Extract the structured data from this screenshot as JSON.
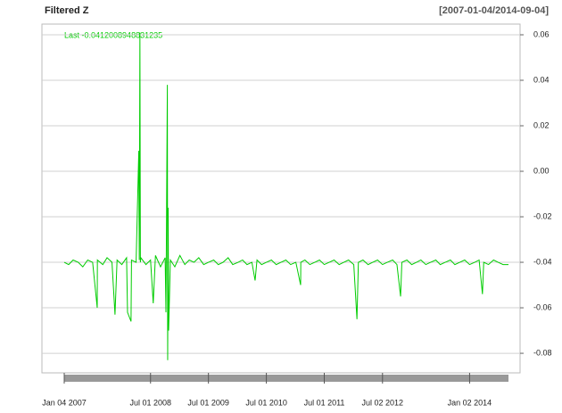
{
  "chart_data": {
    "type": "line",
    "title": "Filtered Z",
    "subtitle": "[2007-01-04/2014-09-04]",
    "annotation": "Last -0.0412008948831235",
    "color": "#00cc00",
    "grid": true,
    "xlim": [
      "2007-01-04",
      "2014-09-04"
    ],
    "ylim": [
      -0.0886,
      0.0647
    ],
    "yticks": [
      0.06,
      0.04,
      0.02,
      {
        "value": 0,
        "label": "0.00"
      },
      -0.02,
      -0.04,
      -0.06,
      -0.08
    ],
    "xticks": [
      {
        "value": "2007-01-04",
        "label": "Jan 04 2007"
      },
      {
        "value": "2008-07-01",
        "label": "Jul 01 2008"
      },
      {
        "value": "2009-07-01",
        "label": "Jul 01 2009"
      },
      {
        "value": "2010-07-01",
        "label": "Jul 01 2010"
      },
      {
        "value": "2011-07-01",
        "label": "Jul 01 2011"
      },
      {
        "value": "2012-07-02",
        "label": "Jul 02 2012"
      },
      {
        "value": "2014-01-02",
        "label": "Jan 02 2014"
      }
    ],
    "x": [
      "2007-01-04",
      "2007-02-01",
      "2007-03-01",
      "2007-04-02",
      "2007-05-01",
      "2007-06-01",
      "2007-07-02",
      "2007-07-31",
      "2007-08-01",
      "2007-09-04",
      "2007-10-01",
      "2007-11-01",
      "2007-11-20",
      "2007-12-03",
      "2008-01-02",
      "2008-02-01",
      "2008-02-07",
      "2008-02-29",
      "2008-03-03",
      "2008-04-01",
      "2008-04-18",
      "2008-04-21",
      "2008-04-25",
      "2008-04-28",
      "2008-05-01",
      "2008-06-02",
      "2008-07-01",
      "2008-07-18",
      "2008-08-01",
      "2008-09-02",
      "2008-10-01",
      "2008-10-06",
      "2008-10-15",
      "2008-10-17",
      "2008-10-20",
      "2008-10-23",
      "2008-11-03",
      "2008-12-01",
      "2009-01-02",
      "2009-02-02",
      "2009-03-02",
      "2009-04-01",
      "2009-05-01",
      "2009-06-01",
      "2009-07-01",
      "2009-08-03",
      "2009-09-01",
      "2009-10-01",
      "2009-11-02",
      "2009-12-01",
      "2010-01-04",
      "2010-02-01",
      "2010-03-01",
      "2010-04-01",
      "2010-04-21",
      "2010-05-03",
      "2010-06-01",
      "2010-07-01",
      "2010-08-02",
      "2010-09-01",
      "2010-10-01",
      "2010-11-01",
      "2010-12-01",
      "2011-01-03",
      "2011-02-02",
      "2011-02-03",
      "2011-03-01",
      "2011-04-01",
      "2011-05-02",
      "2011-06-01",
      "2011-07-01",
      "2011-08-01",
      "2011-09-01",
      "2011-10-03",
      "2011-11-01",
      "2011-12-01",
      "2012-01-03",
      "2012-01-23",
      "2012-02-01",
      "2012-03-01",
      "2012-04-02",
      "2012-05-01",
      "2012-06-01",
      "2012-07-02",
      "2012-08-01",
      "2012-09-04",
      "2012-10-01",
      "2012-10-24",
      "2012-11-01",
      "2012-12-03",
      "2013-01-02",
      "2013-02-01",
      "2013-03-01",
      "2013-04-01",
      "2013-05-01",
      "2013-06-03",
      "2013-07-01",
      "2013-08-01",
      "2013-09-03",
      "2013-10-01",
      "2013-11-01",
      "2013-12-02",
      "2014-01-02",
      "2014-02-03",
      "2014-03-03",
      "2014-03-24",
      "2014-04-01",
      "2014-05-01",
      "2014-06-02",
      "2014-07-01",
      "2014-08-01",
      "2014-09-04"
    ],
    "values": [
      -0.04,
      -0.041,
      -0.039,
      -0.04,
      -0.042,
      -0.039,
      -0.04,
      -0.06,
      -0.039,
      -0.041,
      -0.038,
      -0.04,
      -0.063,
      -0.039,
      -0.041,
      -0.038,
      -0.062,
      -0.066,
      -0.039,
      -0.04,
      0.009,
      -0.039,
      0.061,
      -0.04,
      -0.038,
      -0.041,
      -0.039,
      -0.058,
      -0.037,
      -0.042,
      -0.038,
      -0.062,
      0.038,
      -0.083,
      -0.016,
      -0.07,
      -0.039,
      -0.042,
      -0.037,
      -0.041,
      -0.039,
      -0.04,
      -0.038,
      -0.041,
      -0.04,
      -0.039,
      -0.041,
      -0.04,
      -0.038,
      -0.041,
      -0.04,
      -0.039,
      -0.041,
      -0.04,
      -0.048,
      -0.039,
      -0.041,
      -0.04,
      -0.039,
      -0.041,
      -0.04,
      -0.039,
      -0.041,
      -0.04,
      -0.05,
      -0.04,
      -0.039,
      -0.041,
      -0.04,
      -0.039,
      -0.041,
      -0.04,
      -0.039,
      -0.041,
      -0.04,
      -0.039,
      -0.041,
      -0.065,
      -0.04,
      -0.039,
      -0.041,
      -0.04,
      -0.039,
      -0.041,
      -0.04,
      -0.039,
      -0.041,
      -0.055,
      -0.04,
      -0.039,
      -0.041,
      -0.04,
      -0.039,
      -0.041,
      -0.04,
      -0.039,
      -0.041,
      -0.04,
      -0.039,
      -0.041,
      -0.04,
      -0.039,
      -0.041,
      -0.04,
      -0.039,
      -0.054,
      -0.04,
      -0.041,
      -0.039,
      -0.04,
      -0.041,
      -0.041
    ]
  }
}
